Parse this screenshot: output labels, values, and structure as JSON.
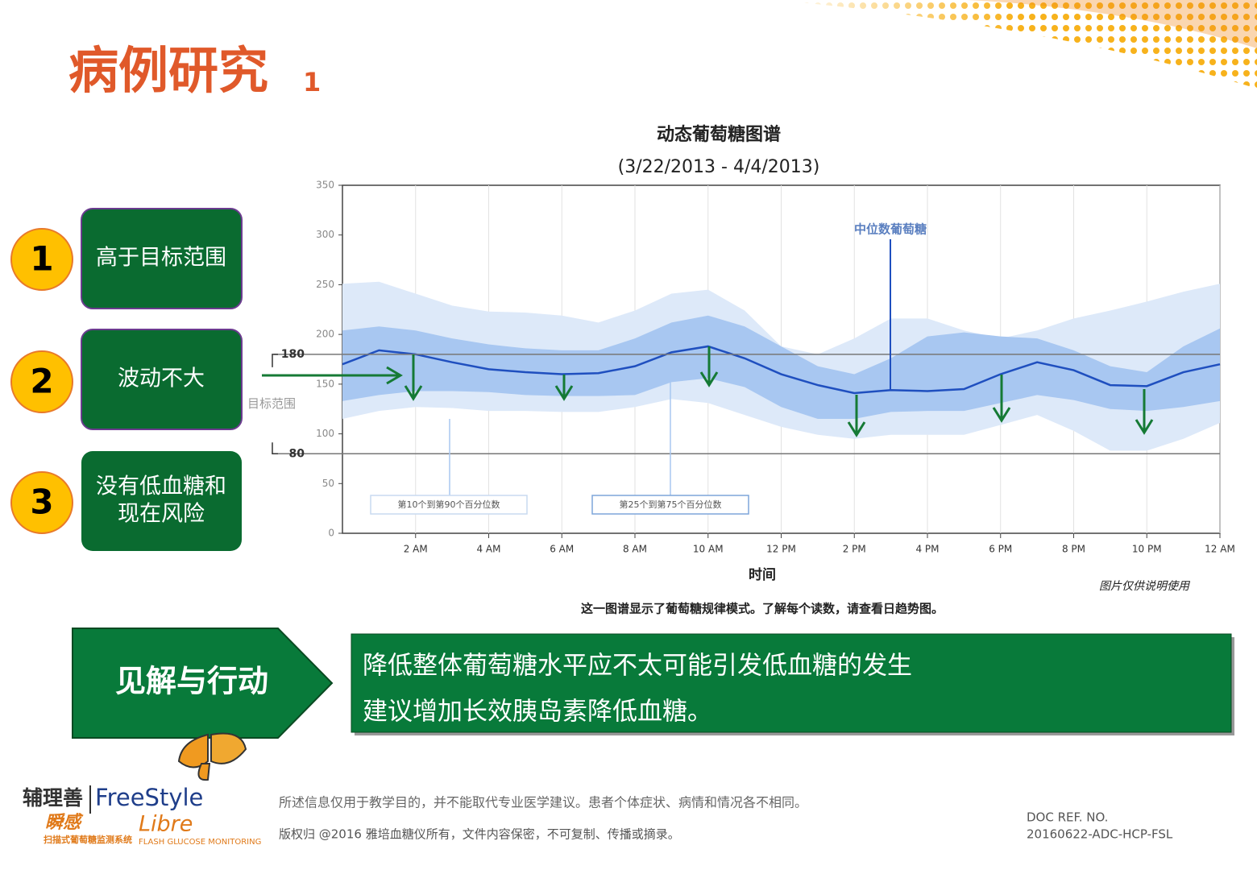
{
  "slide_title": "病例研究",
  "slide_title_note": "1",
  "items": [
    {
      "number": "1",
      "text": "高于目标范围"
    },
    {
      "number": "2",
      "text": "波动不大"
    },
    {
      "number": "3",
      "text": [
        "没有低血糖和",
        "现在风险"
      ]
    }
  ],
  "insight": {
    "label": "见解与行动",
    "lines": [
      "降低整体葡萄糖水平应不太可能引发低血糖的发生",
      "建议增加长效胰岛素降低血糖。"
    ]
  },
  "footer": {
    "disclaimer": "所述信息仅用于教学目的，并不能取代专业医学建议。患者个体症状、病情和情况各不相同。",
    "copyright": "版权归 @2016 雅培血糖仪所有，文件内容保密，不可复制、传播或摘录。",
    "doc_ref_label": "DOC REF. NO.",
    "doc_ref": "20160622-ADC-HCP-FSL",
    "logo": {
      "brand_cn": "辅理善",
      "brand": "FreeStyle",
      "product_cn": "瞬感",
      "product": "Libre",
      "tagline_cn": "扫描式葡萄糖监测系统",
      "tagline": "FLASH GLUCOSE MONITORING"
    }
  },
  "chart_data": {
    "type": "line",
    "title": "动态葡萄糖图谱",
    "subtitle": "(3/22/2013 - 4/4/2013)",
    "x_label": "时间",
    "caption": "这一图谱显示了葡萄糖规律模式。了解每个读数，请查看日趋势图。",
    "note": "图片仅供说明使用",
    "x": [
      0,
      1,
      2,
      3,
      4,
      5,
      6,
      7,
      8,
      9,
      10,
      11,
      12,
      13,
      14,
      15,
      16,
      17,
      18,
      19,
      20,
      21,
      22,
      23,
      24
    ],
    "xlim": [
      0,
      24
    ],
    "xticks": [
      {
        "value": 2,
        "label": "2 AM"
      },
      {
        "value": 4,
        "label": "4 AM"
      },
      {
        "value": 6,
        "label": "6 AM"
      },
      {
        "value": 8,
        "label": "8 AM"
      },
      {
        "value": 10,
        "label": "10 AM"
      },
      {
        "value": 12,
        "label": "12 PM"
      },
      {
        "value": 14,
        "label": "2 PM"
      },
      {
        "value": 16,
        "label": "4 PM"
      },
      {
        "value": 18,
        "label": "6 PM"
      },
      {
        "value": 20,
        "label": "8 PM"
      },
      {
        "value": 22,
        "label": "10 PM"
      },
      {
        "value": 24,
        "label": "12 AM"
      }
    ],
    "ylim": [
      0,
      350
    ],
    "yticks": [
      0,
      50,
      100,
      150,
      200,
      250,
      300,
      350
    ],
    "grid": true,
    "target": {
      "label": "目标范围",
      "low": 80,
      "high": 180
    },
    "bands": [
      {
        "name": "第10个到第90个百分位数",
        "color": "#dde9f9",
        "low": [
          115,
          123,
          127,
          126,
          123,
          123,
          122,
          122,
          127,
          135,
          131,
          119,
          107,
          99,
          95,
          99,
          99,
          99,
          109,
          119,
          103,
          83,
          83,
          95,
          111
        ],
        "high": [
          251,
          253,
          241,
          229,
          223,
          222,
          219,
          212,
          224,
          241,
          245,
          224,
          188,
          180,
          196,
          216,
          216,
          204,
          196,
          204,
          216,
          224,
          233,
          243,
          251
        ]
      },
      {
        "name": "第25个到第75个百分位数",
        "color": "#a8c7f1",
        "low": [
          133,
          139,
          143,
          143,
          142,
          139,
          138,
          138,
          139,
          152,
          156,
          147,
          127,
          115,
          115,
          122,
          123,
          123,
          131,
          139,
          134,
          125,
          123,
          127,
          133
        ],
        "high": [
          204,
          208,
          204,
          196,
          190,
          186,
          184,
          184,
          196,
          212,
          219,
          208,
          188,
          168,
          160,
          176,
          198,
          202,
          198,
          196,
          184,
          168,
          162,
          188,
          206
        ]
      }
    ],
    "series": [
      {
        "name": "中位数葡萄糖",
        "color": "#1f4fbf",
        "values": [
          170,
          184,
          180,
          172,
          165,
          162,
          160,
          161,
          168,
          182,
          188,
          176,
          160,
          149,
          141,
          144,
          143,
          145,
          160,
          172,
          164,
          149,
          148,
          162,
          170
        ]
      }
    ]
  }
}
